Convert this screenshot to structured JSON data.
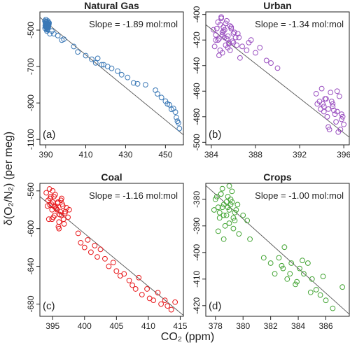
{
  "figure": {
    "ylabel": "δ(O₂/N₂) (per meg)",
    "xlabel": "CO₂ (ppm)"
  },
  "chart_data": [
    {
      "type": "scatter",
      "title": "Natural Gas",
      "panel_label": "(a)",
      "annotation": "Slope = -1.89 mol:mol",
      "color": "#3a78b6",
      "xlim": [
        387,
        459
      ],
      "ylim": [
        -1130,
        -400
      ],
      "xticks": [
        390,
        410,
        430,
        450
      ],
      "yticks": [
        -500,
        -700,
        -900,
        -1100
      ],
      "fit_line": {
        "x": [
          387,
          459
        ],
        "y": [
          -430,
          -1075
        ]
      },
      "points": {
        "x": [
          389.5,
          389.8,
          390.1,
          390.3,
          390.6,
          390.9,
          391.1,
          391.4,
          389.6,
          389.9,
          390.2,
          390.5,
          390.8,
          391.0,
          391.3,
          390.0,
          390.4,
          390.7,
          391.2,
          389.7,
          390.6,
          391.5,
          389.8,
          390.3,
          391.0,
          390.5,
          391.3,
          390.1,
          390.9,
          391.6,
          389.9,
          390.7,
          391.1,
          390.2,
          390.8,
          392,
          393,
          394,
          396,
          398,
          399,
          404,
          406,
          410,
          413,
          415,
          416,
          418,
          419,
          421,
          423,
          426,
          428,
          431,
          434,
          436,
          440,
          445,
          446,
          448,
          450,
          451,
          452,
          453,
          454,
          455,
          455.5,
          456,
          456.5,
          457
        ],
        "y": [
          -450,
          -455,
          -462,
          -470,
          -478,
          -485,
          -460,
          -472,
          -490,
          -468,
          -452,
          -480,
          -495,
          -465,
          -475,
          -442,
          -488,
          -470,
          -458,
          -476,
          -498,
          -468,
          -462,
          -485,
          -450,
          -505,
          -480,
          -472,
          -492,
          -460,
          -482,
          -466,
          -490,
          -455,
          -475,
          -520,
          -505,
          -520,
          -530,
          -555,
          -550,
          -590,
          -620,
          -640,
          -660,
          -680,
          -655,
          -690,
          -690,
          -700,
          -710,
          -725,
          -745,
          -760,
          -790,
          -795,
          -800,
          -830,
          -850,
          -870,
          -890,
          -905,
          -910,
          -935,
          -930,
          -950,
          -980,
          -1000,
          -1010,
          -1040
        ]
      }
    },
    {
      "type": "scatter",
      "title": "Urban",
      "panel_label": "(b)",
      "annotation": "Slope = -1.34 mol:mol",
      "color": "#9a4fc0",
      "xlim": [
        383.5,
        396.5
      ],
      "ylim": [
        -502,
        -398
      ],
      "xticks": [
        384,
        388,
        392,
        396
      ],
      "yticks": [
        -400,
        -420,
        -440,
        -460,
        -480,
        -500
      ],
      "fit_line": {
        "x": [
          383.5,
          396.5
        ],
        "y": [
          -408,
          -496
        ]
      },
      "points": {
        "x": [
          384.2,
          384.4,
          384.6,
          384.8,
          385.0,
          385.2,
          385.4,
          385.6,
          385.8,
          386.0,
          384.3,
          384.5,
          384.7,
          384.9,
          385.1,
          385.3,
          385.5,
          385.7,
          385.9,
          386.1,
          384.6,
          384.8,
          385.0,
          385.2,
          385.4,
          385.6,
          385.8,
          386.2,
          386.4,
          384.4,
          385.0,
          385.5,
          386.0,
          386.5,
          385.3,
          384.9,
          385.7,
          386.3,
          385.1,
          384.7,
          386.8,
          387.2,
          387.6,
          388.0,
          388.4,
          389.0,
          389.4,
          390.0,
          386.6,
          387.4,
          393.5,
          393.8,
          394.0,
          394.2,
          394.4,
          394.6,
          394.8,
          395.0,
          395.2,
          395.4,
          395.6,
          395.8,
          396.0,
          394.1,
          394.5,
          394.9,
          395.3,
          395.7,
          393.9,
          394.3,
          394.7,
          395.1,
          395.5,
          395.9,
          394.6,
          395.0,
          394.2,
          395.4,
          393.6,
          395.8
        ],
        "y": [
          -412,
          -416,
          -420,
          -408,
          -414,
          -418,
          -405,
          -422,
          -410,
          -415,
          -425,
          -411,
          -419,
          -402,
          -413,
          -424,
          -417,
          -409,
          -421,
          -414,
          -406,
          -428,
          -416,
          -412,
          -419,
          -423,
          -411,
          -418,
          -415,
          -420,
          -430,
          -426,
          -422,
          -418,
          -407,
          -403,
          -428,
          -424,
          -410,
          -432,
          -425,
          -428,
          -420,
          -430,
          -426,
          -436,
          -438,
          -442,
          -434,
          -422,
          -462,
          -468,
          -458,
          -472,
          -466,
          -474,
          -461,
          -470,
          -478,
          -476,
          -464,
          -482,
          -486,
          -470,
          -480,
          -468,
          -484,
          -490,
          -474,
          -466,
          -490,
          -475,
          -492,
          -480,
          -488,
          -472,
          -476,
          -460,
          -470,
          -478
        ]
      }
    },
    {
      "type": "scatter",
      "title": "Coal",
      "panel_label": "(c)",
      "annotation": "Slope = -1.16 mol:mol",
      "color": "#e8191c",
      "xlim": [
        393,
        415.5
      ],
      "ylim": [
        -693,
        -552
      ],
      "xticks": [
        395,
        400,
        405,
        410,
        415
      ],
      "yticks": [
        -560,
        -600,
        -640,
        -680
      ],
      "fit_line": {
        "x": [
          393,
          415.5
        ],
        "y": [
          -566,
          -692
        ]
      },
      "points": {
        "x": [
          394.0,
          394.3,
          394.6,
          394.9,
          395.2,
          395.5,
          395.8,
          396.1,
          396.4,
          396.7,
          397.0,
          394.2,
          394.5,
          394.8,
          395.1,
          395.4,
          395.7,
          396.0,
          396.3,
          396.6,
          396.9,
          397.2,
          394.4,
          394.7,
          395.0,
          395.3,
          395.6,
          395.9,
          396.2,
          396.5,
          396.8,
          397.4,
          397.6,
          395.0,
          396.0,
          394.9,
          395.8,
          396.4,
          395.3,
          394.6,
          399.0,
          399.4,
          400.0,
          400.5,
          401.0,
          401.6,
          402.0,
          402.5,
          403.2,
          403.8,
          404.5,
          405.0,
          405.6,
          406.2,
          407.0,
          407.5,
          408.0,
          408.5,
          409.0,
          409.8,
          410.2,
          410.8,
          411.5,
          412.0,
          412.6,
          413.0,
          413.6,
          414.2
        ],
        "y": [
          -562,
          -570,
          -575,
          -580,
          -566,
          -578,
          -572,
          -585,
          -568,
          -590,
          -582,
          -576,
          -558,
          -574,
          -588,
          -564,
          -580,
          -593,
          -570,
          -576,
          -584,
          -578,
          -590,
          -566,
          -572,
          -586,
          -579,
          -598,
          -582,
          -574,
          -595,
          -588,
          -580,
          -560,
          -600,
          -590,
          -573,
          -586,
          -577,
          -568,
          -605,
          -615,
          -620,
          -612,
          -625,
          -618,
          -630,
          -622,
          -632,
          -640,
          -636,
          -645,
          -650,
          -648,
          -655,
          -660,
          -664,
          -652,
          -670,
          -664,
          -674,
          -676,
          -668,
          -680,
          -676,
          -682,
          -686,
          -678
        ]
      }
    },
    {
      "type": "scatter",
      "title": "Crops",
      "panel_label": "(d)",
      "annotation": "Slope = -1.00 mol:mol",
      "color": "#44a535",
      "xlim": [
        377.3,
        387.7
      ],
      "ylim": [
        -424,
        -374
      ],
      "xticks": [
        378,
        380,
        382,
        384,
        386
      ],
      "yticks": [
        -380,
        -390,
        -400,
        -410,
        -420
      ],
      "fit_line": {
        "x": [
          377.3,
          387.7
        ],
        "y": [
          -374.8,
          -423.2
        ]
      },
      "points": {
        "x": [
          378.0,
          378.2,
          378.4,
          378.6,
          378.8,
          379.0,
          379.2,
          379.4,
          379.6,
          378.1,
          378.3,
          378.5,
          378.7,
          378.9,
          379.1,
          379.3,
          379.5,
          378.2,
          378.4,
          378.6,
          378.8,
          379.0,
          379.2,
          379.4,
          378.5,
          378.9,
          379.3,
          379.7,
          380.0,
          380.3,
          377.9,
          378.6,
          379.1,
          380.5,
          378.3,
          379.0,
          381.5,
          382.0,
          382.3,
          382.6,
          382.9,
          383.2,
          383.5,
          383.8,
          384.1,
          384.4,
          384.7,
          385.0,
          385.3,
          385.6,
          383.0,
          383.4,
          383.9,
          384.3,
          382.8,
          384.9,
          386.0,
          386.5,
          387.2,
          385.8
        ],
        "y": [
          -380,
          -383,
          -378,
          -386,
          -381,
          -384,
          -377,
          -388,
          -382,
          -379,
          -385,
          -376,
          -390,
          -383,
          -380,
          -387,
          -384,
          -392,
          -378,
          -382,
          -386,
          -389,
          -381,
          -385,
          -383,
          -379,
          -391,
          -393,
          -386,
          -388,
          -384,
          -395,
          -382,
          -395,
          -387,
          -375,
          -402,
          -404,
          -408,
          -402,
          -406,
          -410,
          -404,
          -412,
          -406,
          -408,
          -404,
          -410,
          -414,
          -416,
          -398,
          -408,
          -411,
          -403,
          -405,
          -415,
          -418,
          -421,
          -413,
          -409
        ]
      }
    }
  ]
}
